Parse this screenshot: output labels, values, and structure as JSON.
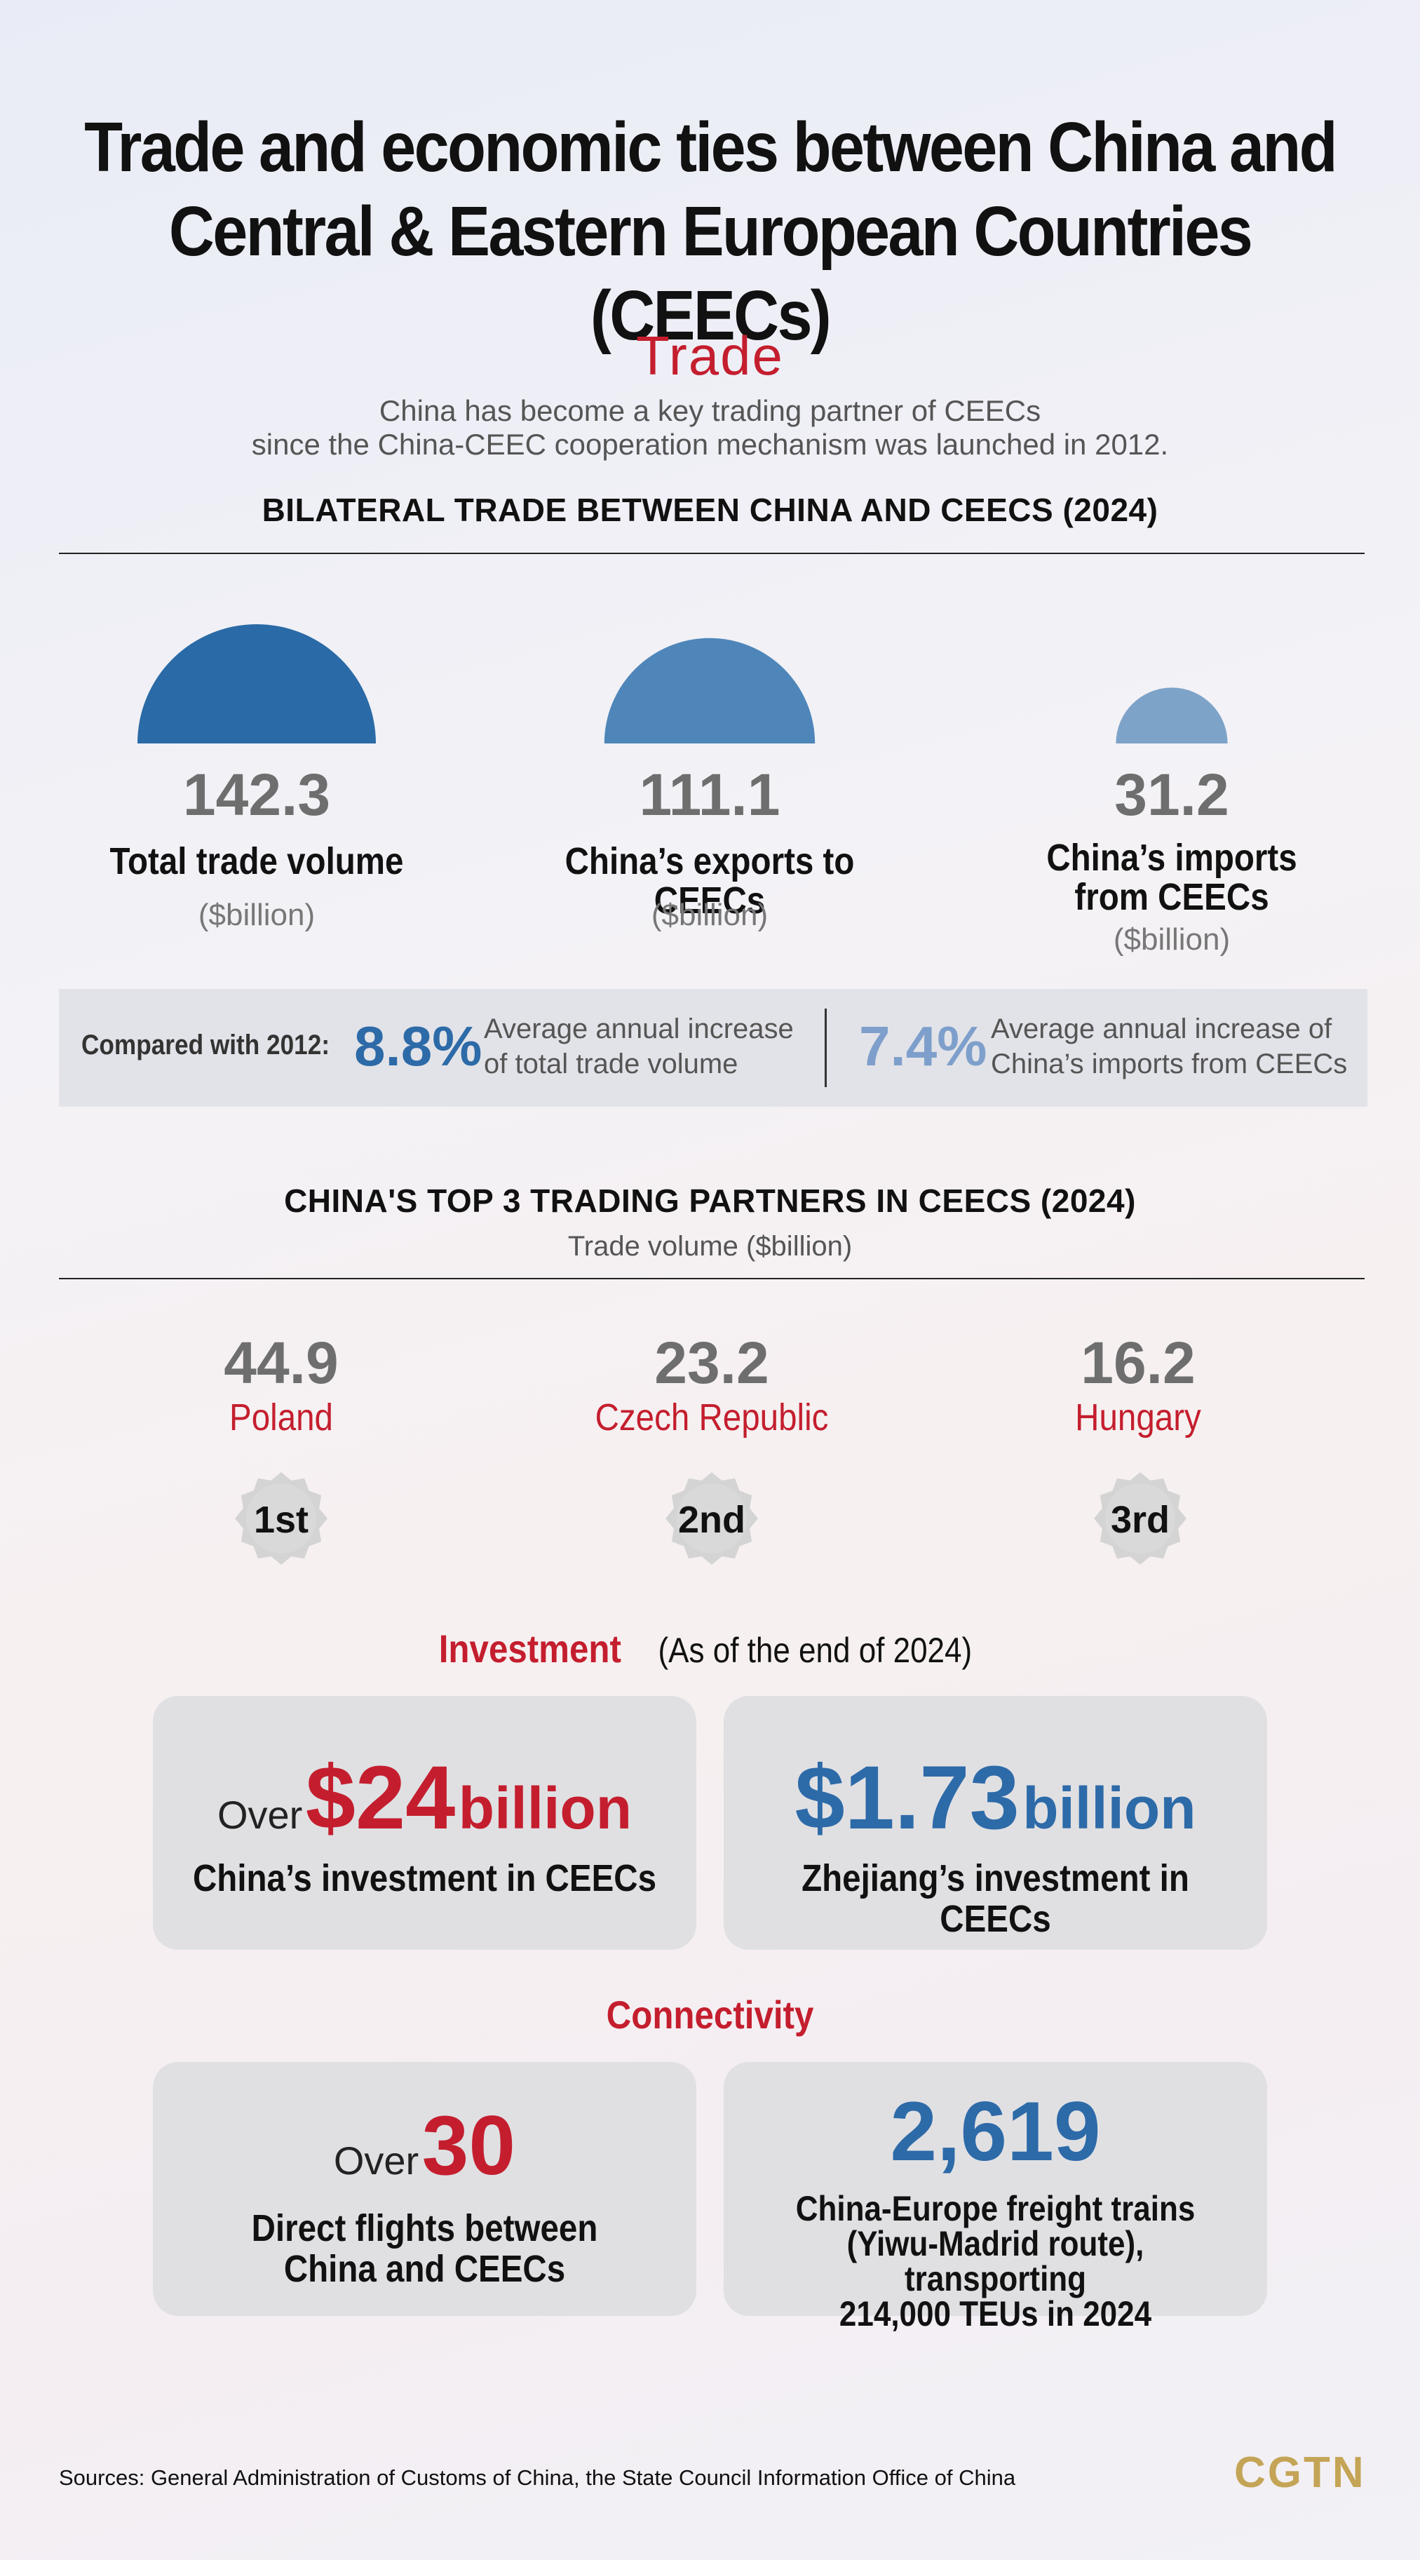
{
  "title_line1": "Trade and economic ties between China and",
  "title_line2": "Central & Eastern European Countries (CEECs)",
  "trade": {
    "heading": "Trade",
    "desc_line1": "China has become a key trading partner of CEECs",
    "desc_line2": "since the China-CEEC cooperation mechanism was launched in 2012.",
    "bilateral_heading": "BILATERAL TRADE BETWEEN CHINA AND CEECS (2024)",
    "items": [
      {
        "value": "142.3",
        "label_line1": "Total trade volume",
        "label_line2": "",
        "unit": "($billion)"
      },
      {
        "value": "111.1",
        "label_line1": "China’s exports to CEECs",
        "label_line2": "",
        "unit": "($billion)"
      },
      {
        "value": "31.2",
        "label_line1": "China’s imports",
        "label_line2": "from CEECs",
        "unit": "($billion)"
      }
    ],
    "compare": {
      "label": "Compared with 2012:",
      "pct1": "8.8%",
      "desc1_line1": "Average annual increase",
      "desc1_line2": "of total trade volume",
      "pct2": "7.4%",
      "desc2_line1": "Average annual increase of",
      "desc2_line2": "China’s imports from CEECs"
    }
  },
  "partners": {
    "heading": "CHINA'S TOP 3 TRADING PARTNERS IN CEECS (2024)",
    "subheading": "Trade volume ($billion)",
    "items": [
      {
        "value": "44.9",
        "name": "Poland",
        "rank": "1st"
      },
      {
        "value": "23.2",
        "name": "Czech Republic",
        "rank": "2nd"
      },
      {
        "value": "16.2",
        "name": "Hungary",
        "rank": "3rd"
      }
    ]
  },
  "investment": {
    "heading": "Investment",
    "note": "(As of the end of 2024)",
    "card1": {
      "prefix": "Over",
      "amount": "$24",
      "unit": "billion",
      "label": "China’s investment in CEECs"
    },
    "card2": {
      "amount": "$1.73",
      "unit": "billion",
      "label": "Zhejiang’s investment in CEECs"
    }
  },
  "connectivity": {
    "heading": "Connectivity",
    "card1": {
      "prefix": "Over",
      "amount": "30",
      "label_line1": "Direct flights between",
      "label_line2": "China and CEECs"
    },
    "card2": {
      "amount": "2,619",
      "label_line1": "China-Europe freight trains",
      "label_line2": "(Yiwu-Madrid route), transporting",
      "label_line3": "214,000 TEUs in 2024"
    }
  },
  "sources": "Sources: General Administration of Customs of China, the State Council Information Office of China",
  "logo": "CGTN",
  "colors": {
    "dark_blue": "#2a6aa6",
    "mid_blue": "#4f86b9",
    "light_blue": "#7ea3c9",
    "red": "#c41e2e",
    "gold": "#c4a456"
  },
  "chart_data": [
    {
      "type": "semicircle",
      "title": "BILATERAL TRADE BETWEEN CHINA AND CEECS (2024)",
      "categories": [
        "Total trade volume",
        "China’s exports to CEECs",
        "China’s imports from CEECs"
      ],
      "values": [
        142.3,
        111.1,
        31.2
      ],
      "unit": "($billion)"
    },
    {
      "type": "ranking",
      "title": "CHINA'S TOP 3 TRADING PARTNERS IN CEECS (2024)",
      "categories": [
        "Poland",
        "Czech Republic",
        "Hungary"
      ],
      "values": [
        44.9,
        23.2,
        16.2
      ],
      "unit": "Trade volume ($billion)"
    }
  ]
}
